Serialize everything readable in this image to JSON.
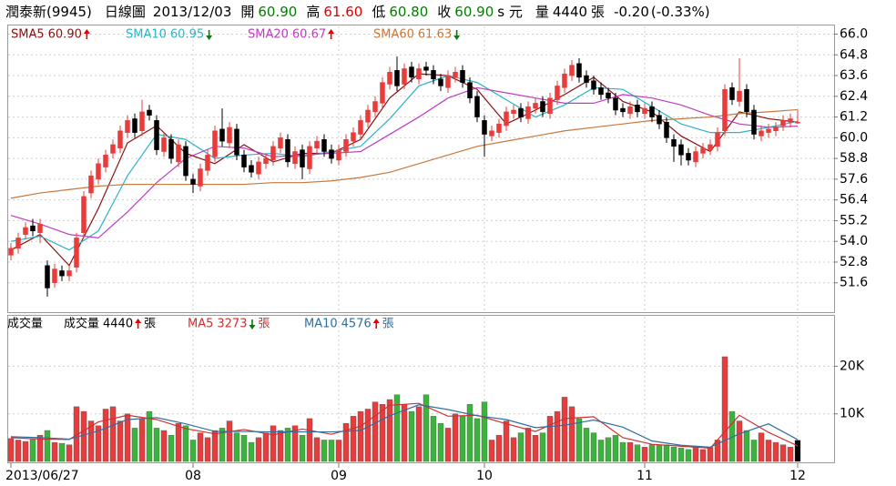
{
  "header": {
    "name": "潤泰新(9945)",
    "period": "日線圖",
    "date": "2013/12/03",
    "quotes": [
      {
        "label": "開",
        "value": 60.9,
        "value_label": "60.90",
        "color": "#008000"
      },
      {
        "label": "高",
        "value": 61.6,
        "value_label": "61.60",
        "color": "#e00000"
      },
      {
        "label": "低",
        "value": 60.8,
        "value_label": "60.80",
        "color": "#008000"
      },
      {
        "label": "收",
        "value": 60.9,
        "value_label": "60.90",
        "color": "#008000"
      }
    ],
    "unit": "s 元",
    "volume_label": "量",
    "volume": 4440,
    "volume_unit": "張",
    "change": -0.2,
    "change_label": "-0.20",
    "change_pct": -0.33,
    "change_pct_label": "(-0.33%)"
  },
  "chart_data": [
    {
      "type": "candlestick",
      "open": [
        53.2,
        53.6,
        54.4,
        54.9,
        54.5,
        52.6,
        51.6,
        52.3,
        52,
        52.5,
        54.5,
        56.8,
        57.6,
        58.3,
        59.1,
        59.4,
        60.3,
        61.1,
        60.4,
        61.6,
        61,
        59.2,
        59.9,
        58.6,
        59.5,
        57.6,
        57.2,
        58.1,
        58.9,
        60.5,
        59.7,
        60.5,
        59,
        58.4,
        57.9,
        58.5,
        58.7,
        59.4,
        59.9,
        58.5,
        59.3,
        58.2,
        59.4,
        59.9,
        59.3,
        58.7,
        59.2,
        59.8,
        60.2,
        60.9,
        61.5,
        62,
        63.1,
        63.9,
        63.1,
        64.1,
        63.4,
        64.1,
        63.9,
        63.4,
        62.9,
        63.5,
        63.9,
        63.2,
        62.4,
        61,
        60.1,
        60.3,
        60.7,
        61.4,
        61.7,
        61.1,
        61.7,
        62.1,
        61.4,
        62.2,
        62.9,
        63.6,
        64.3,
        63.6,
        63.3,
        62.9,
        62.6,
        62.3,
        61.7,
        61.4,
        61.9,
        61.4,
        61.8,
        61.3,
        60.9,
        59.9,
        59.6,
        59.1,
        58.6,
        59.1,
        59.3,
        59.5,
        60.4,
        62.9,
        62.1,
        62.8,
        61.6,
        60.1,
        60.3,
        60.4,
        60.7,
        60.9,
        60.9
      ],
      "high": [
        53.9,
        54.5,
        55.1,
        55.3,
        55.3,
        52.9,
        52.7,
        52.6,
        52.6,
        54.5,
        56.9,
        58.1,
        58.8,
        59.3,
        59.9,
        60.7,
        61.3,
        61.4,
        62.2,
        61.9,
        61.3,
        60.3,
        60.2,
        59.9,
        59.8,
        57.9,
        58.5,
        59.3,
        60.7,
        61.7,
        60.9,
        60.8,
        59.3,
        58.7,
        58.9,
        59.1,
        59.8,
        60.3,
        60.2,
        59.5,
        59.6,
        59.8,
        60.1,
        60.2,
        59.6,
        59.6,
        60.2,
        60.6,
        61.3,
        61.9,
        62.4,
        63.5,
        64.1,
        64.7,
        64.3,
        64.4,
        64.3,
        64.4,
        64.2,
        63.7,
        63.9,
        64.1,
        64.2,
        63.5,
        62.7,
        61.3,
        60.7,
        61.1,
        61.8,
        61.9,
        62,
        62.1,
        62.3,
        62.4,
        62.6,
        63.3,
        64,
        64.5,
        64.6,
        63.9,
        63.6,
        63.2,
        62.9,
        62.6,
        62,
        62.1,
        62.2,
        62,
        62.1,
        61.6,
        61.2,
        60.2,
        59.9,
        59.4,
        59.5,
        59.7,
        59.9,
        60.6,
        63.1,
        63.2,
        64.6,
        63.1,
        61.9,
        60.7,
        60.8,
        60.9,
        61.3,
        61.4,
        61.6
      ],
      "low": [
        52.9,
        53.3,
        54.1,
        54.3,
        53.9,
        50.8,
        51.3,
        51.7,
        51.7,
        52.2,
        54.2,
        56.5,
        57.3,
        58,
        58.8,
        59.1,
        60,
        60,
        60.1,
        61,
        59,
        58.9,
        58.5,
        58.3,
        57.5,
        56.8,
        56.9,
        57.8,
        58.6,
        59.5,
        59.4,
        58.7,
        58,
        57.7,
        57.6,
        58.2,
        58.4,
        59.1,
        58.3,
        58.2,
        57.6,
        57.9,
        59.1,
        58.9,
        58.5,
        58.4,
        58.9,
        59.5,
        59.9,
        60.6,
        61.2,
        61.7,
        62.8,
        62.7,
        62.8,
        63.2,
        63.1,
        63.6,
        63.1,
        62.7,
        62.6,
        63.2,
        62.9,
        62,
        60.9,
        58.9,
        59.8,
        60,
        60.4,
        61.1,
        60.9,
        60.8,
        61.4,
        61.2,
        61.1,
        61.9,
        62.6,
        63.3,
        63.2,
        62.9,
        62.5,
        62.2,
        62,
        61.3,
        61.2,
        61.1,
        61.2,
        61.1,
        60.9,
        60.5,
        59.7,
        58.6,
        58.4,
        58.4,
        58.3,
        58.8,
        59,
        59.2,
        60.1,
        61.9,
        61.8,
        61.2,
        59.9,
        59.8,
        60,
        60.1,
        60.4,
        60.6,
        60.8
      ],
      "close": [
        53.6,
        54.2,
        54.8,
        54.6,
        55,
        51.3,
        52.4,
        52,
        52.3,
        54.2,
        56.6,
        57.8,
        58.5,
        59,
        59.6,
        60.4,
        61,
        60.3,
        61.5,
        61.3,
        59.3,
        60,
        58.8,
        59.6,
        57.8,
        57.3,
        58.2,
        59,
        60.4,
        59.8,
        60.6,
        59,
        58.3,
        58,
        58.6,
        58.8,
        59.5,
        60,
        58.6,
        59.2,
        58.3,
        59.5,
        59.8,
        59.2,
        58.8,
        59.3,
        59.9,
        60.3,
        61,
        61.6,
        62.1,
        63.2,
        63.8,
        63,
        64,
        63.5,
        64,
        63.9,
        63.4,
        63,
        63.6,
        63.8,
        63.2,
        62.3,
        61.2,
        60.2,
        60.4,
        60.8,
        61.5,
        61.6,
        61.2,
        61.8,
        62,
        61.5,
        62.3,
        63,
        63.7,
        64.2,
        63.5,
        63.2,
        62.8,
        62.5,
        62.3,
        61.6,
        61.5,
        61.8,
        61.5,
        61.7,
        61.2,
        60.8,
        60,
        59.5,
        59,
        58.7,
        59.2,
        59.4,
        59.6,
        60.3,
        62.8,
        62.2,
        62.7,
        61.5,
        60.2,
        60.4,
        60.5,
        60.6,
        61,
        61.1,
        60.9
      ],
      "up_color": "#e83c3c",
      "down_color": "#000000",
      "ylim": [
        49.9,
        66.5
      ],
      "yticks": [
        51.6,
        52.8,
        {
          "value": 54,
          "label": "54.0"
        },
        55.2,
        56.4,
        57.6,
        58.8,
        {
          "value": 60,
          "label": "60.0"
        },
        61.2,
        62.4,
        63.6,
        64.8,
        {
          "value": 66,
          "label": "66.0"
        }
      ],
      "grid": true,
      "line_x": [
        0,
        4,
        8,
        12,
        16,
        20,
        24,
        28,
        32,
        36,
        40,
        44,
        48,
        52,
        56,
        60,
        64,
        68,
        72,
        76,
        80,
        84,
        88,
        92,
        96,
        100,
        104,
        108
      ],
      "series": [
        {
          "name": "SMA5",
          "color": "#8b1010",
          "last": 60.9,
          "last_label": "60.90",
          "trend": "up",
          "values": [
            53.5,
            54.4,
            52.6,
            55.9,
            59.7,
            60.7,
            59.1,
            58.5,
            59.6,
            58.6,
            59.1,
            59.1,
            59.9,
            62.3,
            63.7,
            63.6,
            62.8,
            60.8,
            61.6,
            62.5,
            63.5,
            62.1,
            61.5,
            60.1,
            59.2,
            61.5,
            61.1,
            60.9
          ]
        },
        {
          "name": "SMA10",
          "color": "#2ab4c8",
          "last": 60.95,
          "last_label": "60.95",
          "trend": "down",
          "values": [
            54,
            54.3,
            53.5,
            54.6,
            57.8,
            60.2,
            59.9,
            58.8,
            59,
            59.1,
            58.9,
            59.2,
            59.5,
            61.1,
            63,
            63.6,
            63.2,
            62.2,
            61.2,
            61.9,
            62.9,
            62.8,
            61.8,
            60.8,
            60.3,
            60.3,
            60.6,
            60.95
          ]
        },
        {
          "name": "SMA20",
          "color": "#c03cc0",
          "last": 60.67,
          "last_label": "60.67",
          "trend": "up",
          "values": [
            55.5,
            55,
            54.4,
            54.2,
            55.7,
            57.4,
            58.8,
            59.5,
            59.4,
            58.9,
            59,
            59.1,
            59.2,
            60.2,
            61.2,
            62.3,
            62.9,
            62.6,
            62.3,
            62,
            62,
            62.5,
            62.3,
            61.9,
            61.3,
            60.8,
            60.6,
            60.67
          ]
        },
        {
          "name": "SMA60",
          "color": "#c8783c",
          "last": 61.63,
          "last_label": "61.63",
          "trend": "down",
          "values": [
            56.5,
            56.8,
            57,
            57.2,
            57.3,
            57.3,
            57.3,
            57.3,
            57.3,
            57.4,
            57.4,
            57.5,
            57.7,
            58,
            58.5,
            59,
            59.5,
            59.8,
            60.1,
            60.4,
            60.6,
            60.8,
            61,
            61.1,
            61.2,
            61.4,
            61.5,
            61.63
          ]
        }
      ]
    },
    {
      "type": "bar",
      "title": "成交量",
      "last": 4440,
      "trend": "up",
      "unit": "張",
      "values": [
        4800,
        4500,
        4200,
        4600,
        5500,
        6500,
        4000,
        3800,
        3500,
        11500,
        10500,
        8500,
        7500,
        11000,
        11500,
        8500,
        10000,
        7000,
        9000,
        10500,
        7000,
        6500,
        5500,
        8000,
        7500,
        4500,
        6000,
        5000,
        6500,
        7000,
        8500,
        6000,
        5500,
        4000,
        5000,
        6000,
        7500,
        6500,
        7000,
        7500,
        5500,
        9000,
        5000,
        4500,
        4500,
        4500,
        8000,
        9500,
        10500,
        11000,
        12500,
        12000,
        13000,
        14000,
        12000,
        10500,
        11500,
        14000,
        9500,
        8000,
        7000,
        10000,
        9500,
        12000,
        9000,
        12500,
        4500,
        5500,
        8500,
        5000,
        6000,
        7000,
        5500,
        6000,
        9500,
        10500,
        13500,
        11500,
        9000,
        7000,
        6000,
        4500,
        5000,
        5500,
        4000,
        4000,
        3500,
        3000,
        3500,
        3500,
        3500,
        3000,
        2800,
        2500,
        3000,
        2500,
        3000,
        4500,
        22000,
        10500,
        8500,
        6500,
        4500,
        6000,
        4500,
        4000,
        3500,
        3000,
        4440
      ],
      "up_color": "#e83c3c",
      "down_color": "#3cb43c",
      "flat_color": "#000000",
      "ylim": [
        0,
        30600
      ],
      "yticks": [
        {
          "value": 10000,
          "label": "10K"
        },
        {
          "value": 20000,
          "label": "20K"
        }
      ],
      "xticks": [
        {
          "value": 0,
          "label": "2013/06/27"
        },
        {
          "value": 25,
          "label": "08"
        },
        {
          "value": 45,
          "label": "09"
        },
        {
          "value": 65,
          "label": "10"
        },
        {
          "value": 87,
          "label": "11"
        },
        {
          "value": 108,
          "label": "12"
        }
      ],
      "grid": true,
      "line_x": [
        0,
        4,
        8,
        12,
        16,
        20,
        24,
        28,
        32,
        36,
        40,
        44,
        48,
        52,
        56,
        60,
        64,
        68,
        72,
        76,
        80,
        84,
        88,
        92,
        96,
        100,
        104,
        108
      ],
      "series": [
        {
          "name": "MA5",
          "color": "#d03030",
          "last": 3273,
          "trend": "down",
          "values": [
            5000,
            4700,
            4600,
            8300,
            9700,
            8800,
            6900,
            5800,
            6700,
            5600,
            6800,
            5700,
            7400,
            11800,
            12200,
            9500,
            9700,
            7900,
            6300,
            9000,
            9400,
            5000,
            3600,
            3200,
            2800,
            9700,
            6100,
            3273
          ]
        },
        {
          "name": "MA10",
          "color": "#2f6f9f",
          "last": 4576,
          "trend": "up",
          "values": [
            5200,
            5000,
            4700,
            6400,
            8800,
            9200,
            7900,
            6300,
            6300,
            6200,
            6200,
            6200,
            6500,
            9600,
            11900,
            10900,
            9600,
            8800,
            7100,
            7600,
            8700,
            7200,
            4300,
            3400,
            3000,
            5800,
            7900,
            4576
          ]
        }
      ]
    }
  ]
}
